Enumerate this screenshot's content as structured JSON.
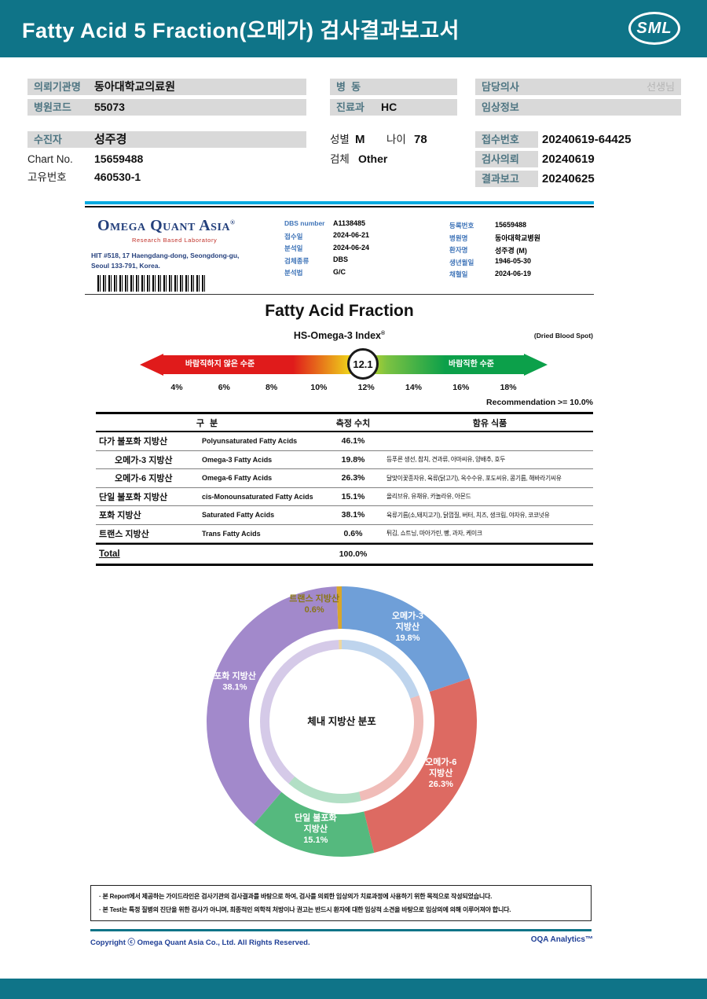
{
  "colors": {
    "teal": "#0f7488",
    "cyan_line": "#00a9e0",
    "navy": "#24407c",
    "strip_gray": "#d9d9d9"
  },
  "page": {
    "title": "Fatty Acid 5 Fraction(오메가) 검사결과보고서",
    "logo_text": "SML"
  },
  "info": {
    "org": {
      "label": "의뢰기관명",
      "value": "동아대학교의료원"
    },
    "hosp_code": {
      "label": "병원코드",
      "value": "55073"
    },
    "ward": {
      "label": "병  동",
      "value": ""
    },
    "dept": {
      "label": "진료과",
      "value": "HC"
    },
    "doctor": {
      "label": "담당의사",
      "value": "선생님"
    },
    "clinical": {
      "label": "임상정보",
      "value": ""
    },
    "patient": {
      "label": "수진자",
      "value": "성주경"
    },
    "sex": {
      "label": "성별",
      "value": "M"
    },
    "age": {
      "label": "나이",
      "value": "78"
    },
    "specimen": {
      "label": "검체",
      "value": "Other"
    },
    "chart_no": {
      "label": "Chart No.",
      "value": "15659488"
    },
    "uid": {
      "label": "고유번호",
      "value": "460530-1"
    },
    "receipt": {
      "label": "접수번호",
      "value": "20240619-64425"
    },
    "request": {
      "label": "검사의뢰",
      "value": "20240619"
    },
    "report_date": {
      "label": "결과보고",
      "value": "20240625"
    }
  },
  "lab": {
    "name": "Omega Quant Asia",
    "reg_mark": "®",
    "tagline": "Research Based Laboratory",
    "address1": "HIT #518, 17 Haengdang-dong, Seongdong-gu,",
    "address2": "Seoul 133-791, Korea.",
    "mid_fields": [
      {
        "label": "DBS number",
        "value": "A1138485"
      },
      {
        "label": "접수일",
        "value": "2024-06-21"
      },
      {
        "label": "분석일",
        "value": "2024-06-24"
      },
      {
        "label": "검체종류",
        "value": "DBS"
      },
      {
        "label": "분석법",
        "value": "G/C"
      }
    ],
    "right_fields": [
      {
        "label": "등록번호",
        "value": "15659488"
      },
      {
        "label": "병원명",
        "value": "동아대학교병원"
      },
      {
        "label": "환자명",
        "value": "성주경 (M)"
      },
      {
        "label": "생년월일",
        "value": "1946-05-30"
      },
      {
        "label": "채혈일",
        "value": "2024-06-19"
      }
    ]
  },
  "report": {
    "title": "Fatty Acid Fraction",
    "index_title": "HS-Omega-3 Index",
    "index_reg": "®",
    "index_note": "(Dried Blood Spot)"
  },
  "gauge": {
    "left_label": "바람직하지 않은 수준",
    "right_label": "바람직한 수준",
    "value": "12.1",
    "ticks": [
      "4%",
      "6%",
      "8%",
      "10%",
      "12%",
      "14%",
      "16%",
      "18%"
    ],
    "recommendation": "Recommendation  >= 10.0%"
  },
  "table": {
    "headers": {
      "group": "구 분",
      "value": "측정 수치",
      "foods": "함유 식품"
    },
    "rows": [
      {
        "kr": "다가 불포화 지방산",
        "en": "Polyunsaturated Fatty Acids",
        "value": "46.1%",
        "foods": "",
        "indent": false
      },
      {
        "kr": "오메가-3 지방산",
        "en": "Omega-3 Fatty Acids",
        "value": "19.8%",
        "foods": "등푸른 생선, 참치, 견과류, 아마씨유, 양배추, 호두",
        "indent": true
      },
      {
        "kr": "오메가-6 지방산",
        "en": "Omega-6 Fatty Acids",
        "value": "26.3%",
        "foods": "달맞이꽃종자유, 육류(닭고기), 옥수수유, 포도씨유, 콩기름, 해바라기씨유",
        "indent": true
      },
      {
        "kr": "단일 불포화 지방산",
        "en": "cis-Monounsaturated Fatty Acids",
        "value": "15.1%",
        "foods": "올리브유, 유채유, 카놀라유, 아몬드",
        "indent": false
      },
      {
        "kr": "포화 지방산",
        "en": "Saturated Fatty Acids",
        "value": "38.1%",
        "foods": "육류기름(소,돼지고기), 닭껍질, 버터, 치즈, 생크림, 야자유, 코코넛유",
        "indent": false
      },
      {
        "kr": "트랜스 지방산",
        "en": "Trans Fatty Acids",
        "value": "0.6%",
        "foods": "튀김, 쇼트닝, 마아가린, 빵, 과자, 케이크",
        "indent": false
      }
    ],
    "total_label": "Total",
    "total_value": "100.0%"
  },
  "chart_data": [
    {
      "type": "gauge",
      "title": "HS-Omega-3 Index",
      "subtitle": "(Dried Blood Spot)",
      "value": 12.1,
      "axis_ticks_pct": [
        4,
        6,
        8,
        10,
        12,
        14,
        16,
        18
      ],
      "recommendation": ">= 10.0%",
      "low_zone_label": "바람직하지 않은 수준",
      "high_zone_label": "바람직한 수준"
    },
    {
      "type": "pie",
      "title": "체내 지방산 분포",
      "segments": [
        {
          "label": "오메가-3 지방산",
          "label_lines": [
            "오메가-3",
            "지방산"
          ],
          "value": 19.8,
          "pct": "19.8%",
          "color": "#6f9fd8"
        },
        {
          "label": "오메가-6 지방산",
          "label_lines": [
            "오메가-6",
            "지방산"
          ],
          "value": 26.3,
          "pct": "26.3%",
          "color": "#dd6a62"
        },
        {
          "label": "단일 불포화 지방산",
          "label_lines": [
            "단일 불포화",
            "지방산"
          ],
          "value": 15.1,
          "pct": "15.1%",
          "color": "#55b97e"
        },
        {
          "label": "포화 지방산",
          "label_lines": [
            "포화 지방산"
          ],
          "value": 38.1,
          "pct": "38.1%",
          "color": "#a289cb"
        },
        {
          "label": "트랜스 지방산",
          "label_lines": [
            "트랜스 지방산"
          ],
          "value": 0.6,
          "pct": "0.6%",
          "color": "#d9a62a"
        }
      ]
    }
  ],
  "footer": {
    "note1": "· 본 Report에서 제공하는 가이드라인은 검사기관의 검사결과를 바탕으로 하여, 검사를 의뢰한 임상의가 치료과정에 사용하기 위한 목적으로 작성되었습니다.",
    "note2": "· 본 Test는 특정 질병의 진단을 위한 검사가 아니며, 최종적인 의학적 처방이나 권고는 반드시 환자에 대한 임상적 소견을 바탕으로 임상의에 의해 이루어져야 합니다.",
    "copyright": "Copyright ⓒ Omega Quant Asia Co., Ltd.  All Rights Reserved.",
    "analytics": "OQA Analytics™"
  }
}
